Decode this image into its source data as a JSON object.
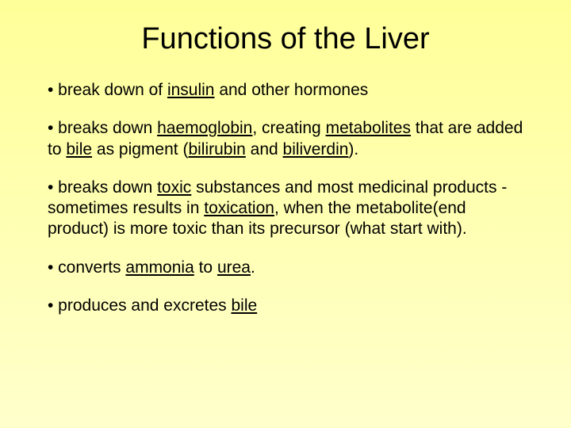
{
  "slide": {
    "background_gradient": [
      "#ffff99",
      "#ffffcc"
    ],
    "text_color": "#000000",
    "title": {
      "text": "Functions of the Liver",
      "fontsize": 38,
      "align": "center"
    },
    "bullets": [
      {
        "segments": [
          {
            "text": "• break down of "
          },
          {
            "text": "insulin",
            "underline": true
          },
          {
            "text": " and other hormones"
          }
        ]
      },
      {
        "segments": [
          {
            "text": "• breaks down "
          },
          {
            "text": "haemoglobin",
            "underline": true
          },
          {
            "text": ", creating "
          },
          {
            "text": "metabolites",
            "underline": true
          },
          {
            "text": " that are added to "
          },
          {
            "text": "bile",
            "underline": true
          },
          {
            "text": " as pigment ("
          },
          {
            "text": "bilirubin",
            "underline": true
          },
          {
            "text": " and "
          },
          {
            "text": "biliverdin",
            "underline": true
          },
          {
            "text": ")."
          }
        ]
      },
      {
        "segments": [
          {
            "text": "• breaks down "
          },
          {
            "text": "toxic",
            "underline": true
          },
          {
            "text": " substances and most medicinal products - sometimes results in "
          },
          {
            "text": "toxication",
            "underline": true
          },
          {
            "text": ", when the metabolite(end product) is more toxic than its precursor (what start with)."
          }
        ]
      },
      {
        "segments": [
          {
            "text": "• converts "
          },
          {
            "text": "ammonia",
            "underline": true
          },
          {
            "text": " to "
          },
          {
            "text": "urea",
            "underline": true
          },
          {
            "text": "."
          }
        ]
      },
      {
        "segments": [
          {
            "text": "• produces and excretes "
          },
          {
            "text": "bile",
            "underline": true
          }
        ]
      }
    ],
    "body_fontsize": 21
  }
}
